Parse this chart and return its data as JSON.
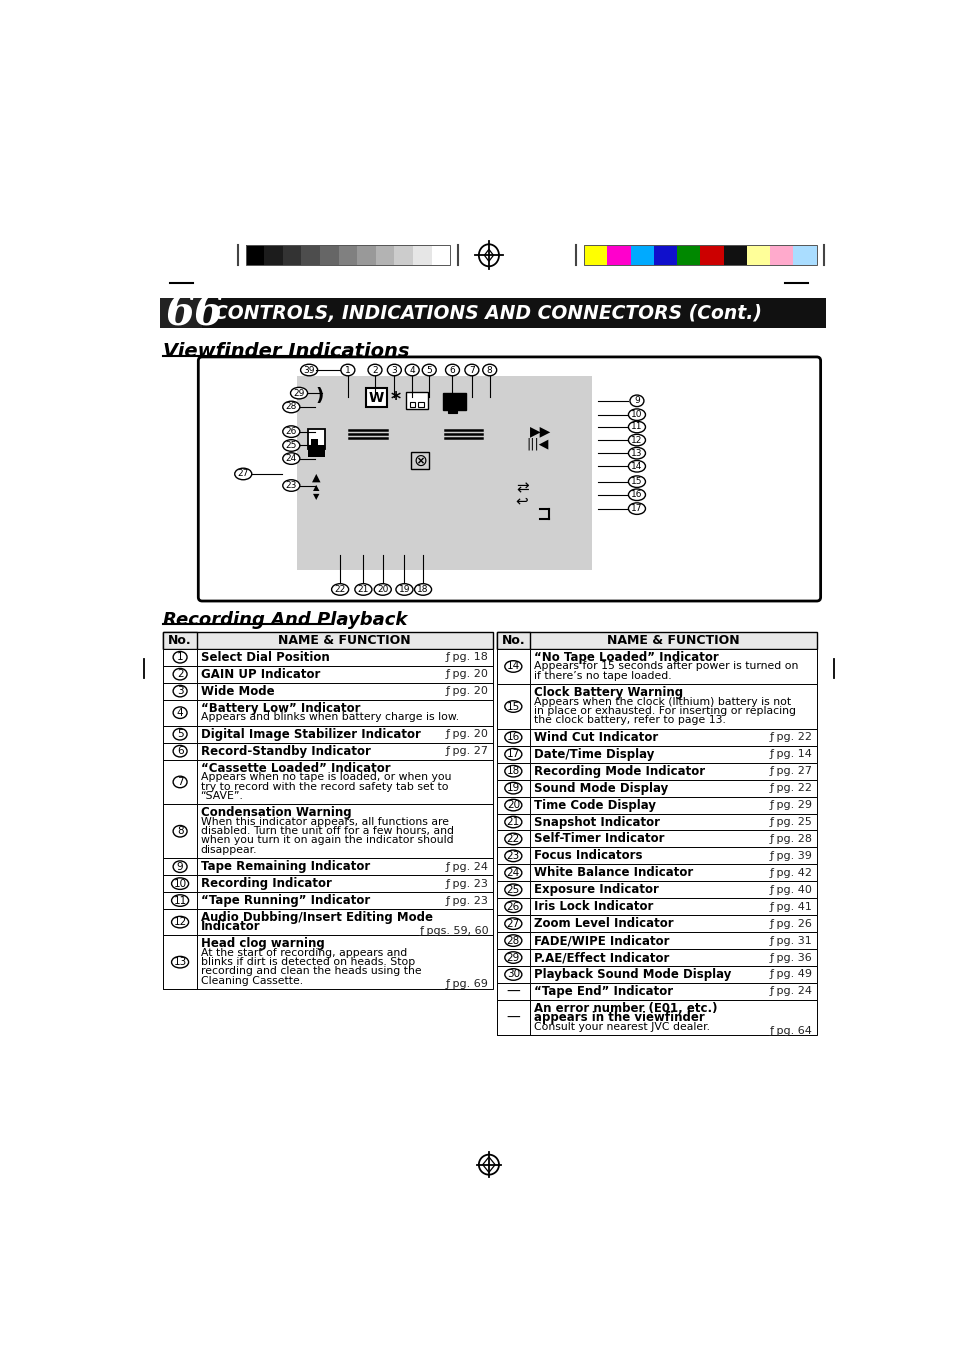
{
  "page_num": "66",
  "title": "CONTROLS, INDICATIONS AND CONNECTORS (Cont.)",
  "section1": "Viewfinder Indications",
  "section2": "Recording And Playback",
  "bg_color": "#ffffff",
  "grayscale_colors": [
    "#000000",
    "#1c1c1c",
    "#333333",
    "#4d4d4d",
    "#666666",
    "#808080",
    "#999999",
    "#b3b3b3",
    "#cccccc",
    "#e6e6e6",
    "#ffffff"
  ],
  "color_bars": [
    "#ffff00",
    "#ff00cc",
    "#00aaff",
    "#1010cc",
    "#008800",
    "#cc0000",
    "#111111",
    "#ffff99",
    "#ffaacc",
    "#aaddff"
  ],
  "left_col_entries": [
    {
      "num": "1",
      "bold": "Select Dial Position",
      "pg": "pg. 18",
      "sub": ""
    },
    {
      "num": "2",
      "bold": "GAIN UP Indicator",
      "pg": "pg. 20",
      "sub": ""
    },
    {
      "num": "3",
      "bold": "Wide Mode",
      "pg": "pg. 20",
      "sub": ""
    },
    {
      "num": "4",
      "bold": "“Battery Low” Indicator",
      "pg": "",
      "sub": "Appears and blinks when battery charge is low."
    },
    {
      "num": "5",
      "bold": "Digital Image Stabilizer Indicator",
      "pg": "pg. 20",
      "sub": "\n"
    },
    {
      "num": "6",
      "bold": "Record-Standby Indicator",
      "pg": "pg. 27",
      "sub": ""
    },
    {
      "num": "7",
      "bold": "“Cassette Loaded” Indicator",
      "pg": "",
      "sub": "Appears when no tape is loaded, or when you\ntry to record with the record safety tab set to\n“SAVE”."
    },
    {
      "num": "8",
      "bold": "Condensation Warning",
      "pg": "",
      "sub": "When this indicator appears, all functions are\ndisabled. Turn the unit off for a few hours, and\nwhen you turn it on again the indicator should\ndisappear."
    },
    {
      "num": "9",
      "bold": "Tape Remaining Indicator",
      "pg": "pg. 24",
      "sub": ""
    },
    {
      "num": "10",
      "bold": "Recording Indicator",
      "pg": "pg. 23",
      "sub": ""
    },
    {
      "num": "11",
      "bold": "“Tape Running” Indicator",
      "pg": "pg. 23",
      "sub": ""
    },
    {
      "num": "12",
      "bold": "Audio Dubbing/Insert Editing Mode\nIndicator",
      "pg": "pgs. 59, 60",
      "sub": ""
    },
    {
      "num": "13",
      "bold": "Head clog warning",
      "pg": "pg. 69",
      "sub": "At the start of recording, appears and\nblinks if dirt is detected on heads. Stop\nrecording and clean the heads using the\nCleaning Cassette."
    }
  ],
  "right_col_entries": [
    {
      "num": "14",
      "bold": "“No Tape Loaded” Indicator",
      "pg": "",
      "sub": "Appears for 15 seconds after power is turned on\nif there’s no tape loaded."
    },
    {
      "num": "15",
      "bold": "Clock Battery Warning",
      "pg": "",
      "sub": "Appears when the clock (lithium) battery is not\nin place or exhausted. For inserting or replacing\nthe clock battery, refer to page 13."
    },
    {
      "num": "16",
      "bold": "Wind Cut Indicator",
      "pg": "pg. 22",
      "sub": ""
    },
    {
      "num": "17",
      "bold": "Date/Time Display",
      "pg": "pg. 14",
      "sub": ""
    },
    {
      "num": "18",
      "bold": "Recording Mode Indicator",
      "pg": "pg. 27",
      "sub": ""
    },
    {
      "num": "19",
      "bold": "Sound Mode Display",
      "pg": "pg. 22",
      "sub": ""
    },
    {
      "num": "20",
      "bold": "Time Code Display",
      "pg": "pg. 29",
      "sub": ""
    },
    {
      "num": "21",
      "bold": "Snapshot Indicator",
      "pg": "pg. 25",
      "sub": ""
    },
    {
      "num": "22",
      "bold": "Self-Timer Indicator",
      "pg": "pg. 28",
      "sub": ""
    },
    {
      "num": "23",
      "bold": "Focus Indicators",
      "pg": "pg. 39",
      "sub": ""
    },
    {
      "num": "24",
      "bold": "White Balance Indicator",
      "pg": "pg. 42",
      "sub": ""
    },
    {
      "num": "25",
      "bold": "Exposure Indicator",
      "pg": "pg. 40",
      "sub": ""
    },
    {
      "num": "26",
      "bold": "Iris Lock Indicator",
      "pg": "pg. 41",
      "sub": ""
    },
    {
      "num": "27",
      "bold": "Zoom Level Indicator",
      "pg": "pg. 26",
      "sub": ""
    },
    {
      "num": "28",
      "bold": "FADE/WIPE Indicator",
      "pg": "pg. 31",
      "sub": ""
    },
    {
      "num": "29",
      "bold": "P.AE/Effect Indicator",
      "pg": "pg. 36",
      "sub": ""
    },
    {
      "num": "30",
      "bold": "Playback Sound Mode Display",
      "pg": "pg. 49",
      "sub": ""
    },
    {
      "num": "—",
      "bold": "“Tape End” Indicator",
      "pg": "pg. 24",
      "sub": ""
    },
    {
      "num": "—",
      "bold": "An error number (E01, etc.)\nappears in the viewfinder",
      "pg": "pg. 64",
      "sub": "Consult your nearest JVC dealer."
    }
  ]
}
